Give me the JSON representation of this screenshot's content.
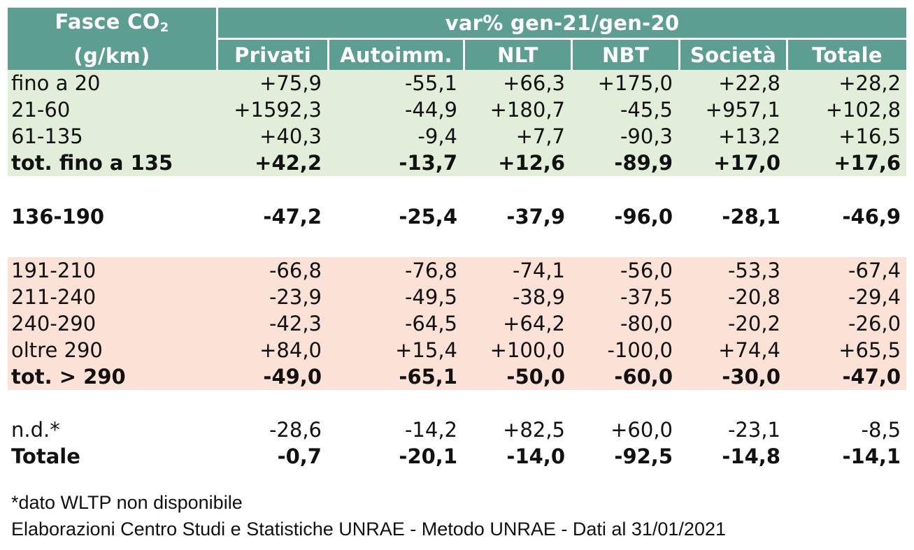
{
  "header": {
    "corner_line1": "Fasce CO",
    "corner_sub": "2",
    "corner_line2": "(g/km)",
    "super_header": "var% gen-21/gen-20",
    "columns": [
      "Privati",
      "Autoimm.",
      "NLT",
      "NBT",
      "Società",
      "Totale"
    ]
  },
  "groups": {
    "green": [
      {
        "label": "fino a 20",
        "values": [
          "+75,9",
          "-55,1",
          "+66,3",
          "+175,0",
          "+22,8",
          "+28,2"
        ]
      },
      {
        "label": "21-60",
        "values": [
          "+1592,3",
          "-44,9",
          "+180,7",
          "-45,5",
          "+957,1",
          "+102,8"
        ]
      },
      {
        "label": "61-135",
        "values": [
          "+40,3",
          "-9,4",
          "+7,7",
          "-90,3",
          "+13,2",
          "+16,5"
        ]
      },
      {
        "label": "tot. fino a 135",
        "values": [
          "+42,2",
          "-13,7",
          "+12,6",
          "-89,9",
          "+17,0",
          "+17,6"
        ],
        "bold": true
      }
    ],
    "mid": {
      "label": "136-190",
      "values": [
        "-47,2",
        "-25,4",
        "-37,9",
        "-96,0",
        "-28,1",
        "-46,9"
      ],
      "bold": true
    },
    "pink": [
      {
        "label": "191-210",
        "values": [
          "-66,8",
          "-76,8",
          "-74,1",
          "-56,0",
          "-53,3",
          "-67,4"
        ]
      },
      {
        "label": "211-240",
        "values": [
          "-23,9",
          "-49,5",
          "-38,9",
          "-37,5",
          "-20,8",
          "-29,4"
        ]
      },
      {
        "label": "240-290",
        "values": [
          "-42,3",
          "-64,5",
          "+64,2",
          "-80,0",
          "-20,2",
          "-26,0"
        ]
      },
      {
        "label": "oltre 290",
        "values": [
          "+84,0",
          "+15,4",
          "+100,0",
          "-100,0",
          "+74,4",
          "+65,5"
        ]
      },
      {
        "label": "tot. > 290",
        "values": [
          "-49,0",
          "-65,1",
          "-50,0",
          "-60,0",
          "-30,0",
          "-47,0"
        ],
        "bold": true
      }
    ],
    "tail": [
      {
        "label": "n.d.*",
        "values": [
          "-28,6",
          "-14,2",
          "+82,5",
          "+60,0",
          "-23,1",
          "-8,5"
        ]
      },
      {
        "label": "Totale",
        "values": [
          "-0,7",
          "-20,1",
          "-14,0",
          "-92,5",
          "-14,8",
          "-14,1"
        ],
        "bold": true
      }
    ]
  },
  "notes": {
    "footnote": "*dato WLTP non disponibile",
    "source": "Elaborazioni Centro Studi e Statistiche UNRAE - Metodo UNRAE - Dati al 31/01/2021"
  },
  "colors": {
    "header_bg": "#5c9e92",
    "green_band": "#e2eed9",
    "pink_band": "#fbe1d6"
  }
}
